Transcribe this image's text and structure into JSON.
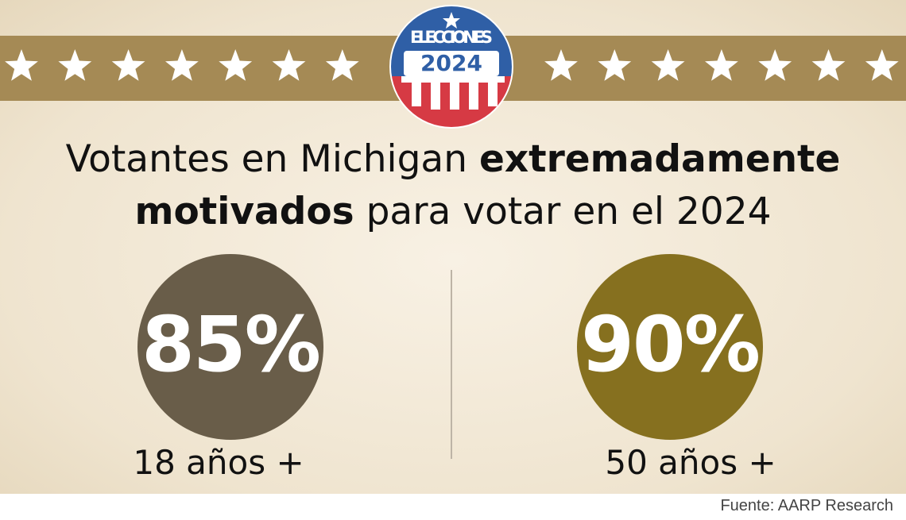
{
  "badge": {
    "label": "ELECCIONES",
    "year": "2024"
  },
  "title": {
    "parts": [
      {
        "text": "Votantes en Michigan",
        "bold": false
      },
      {
        "text": "extremadamente motivados",
        "bold": true
      },
      {
        "text": "para votar en el 2024",
        "bold": false
      }
    ]
  },
  "stats": [
    {
      "value": "85%",
      "label": "18 años +",
      "color": "#695d49"
    },
    {
      "value": "90%",
      "label": "50 años +",
      "color": "#86701f"
    }
  ],
  "source": "Fuente: AARP Research"
}
